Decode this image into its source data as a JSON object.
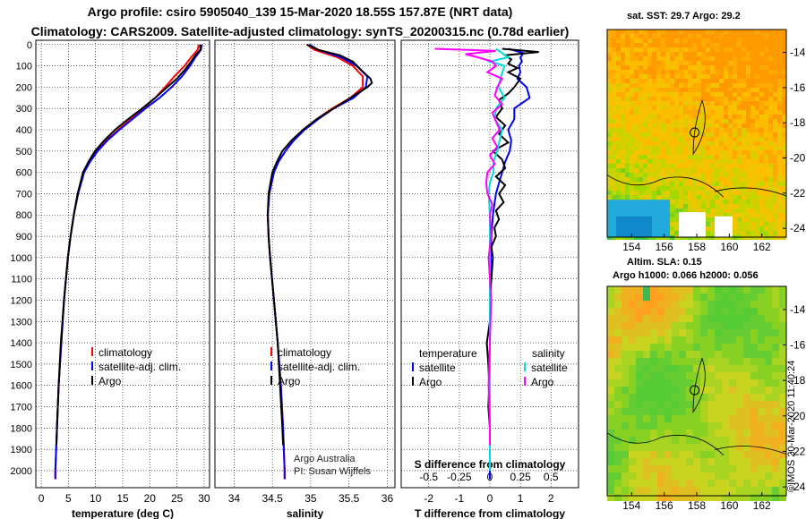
{
  "header": {
    "title_line1": "Argo profile: csiro 5905040_139 15-Mar-2020 18.55S 157.87E (NRT data)",
    "title_line2": "Climatology: CARS2009. Satellite-adjusted climatology: synTS_20200315.nc (0.78d earlier)"
  },
  "depth_axis": {
    "ticks": [
      "0",
      "100",
      "200",
      "300",
      "400",
      "500",
      "600",
      "700",
      "800",
      "900",
      "1000",
      "1100",
      "1200",
      "1300",
      "1400",
      "1500",
      "1600",
      "1700",
      "1800",
      "1900",
      "2000"
    ]
  },
  "colors": {
    "climatology": "#ff0000",
    "satellite": "#0000ff",
    "argo": "#000000",
    "sat_sal": "#00dddd",
    "argo_sal": "#ff00ff"
  },
  "chart_data": [
    {
      "type": "line",
      "xlabel": "temperature (deg C)",
      "ylabel": "depth",
      "xlim": [
        -1,
        31
      ],
      "ylim": [
        2080,
        -20
      ],
      "xticks": [
        "0",
        "5",
        "10",
        "15",
        "20",
        "25",
        "30"
      ],
      "legend": [
        "climatology",
        "satellite-adj. clim.",
        "Argo"
      ],
      "series": [
        {
          "name": "climatology",
          "depth": [
            0,
            25,
            60,
            100,
            150,
            200,
            250,
            300,
            350,
            400,
            450,
            500,
            550,
            600,
            700,
            800,
            900,
            1000,
            1200,
            1400,
            1600,
            1800,
            2000,
            2040
          ],
          "values": [
            29.0,
            28.8,
            27.6,
            26.4,
            24.5,
            22.8,
            21.0,
            18.8,
            16.5,
            14.2,
            12.0,
            10.2,
            8.9,
            7.8,
            6.7,
            6.0,
            5.4,
            4.9,
            4.2,
            3.7,
            3.2,
            2.9,
            2.6,
            2.6
          ]
        },
        {
          "name": "satellite-adj. clim.",
          "depth": [
            0,
            25,
            60,
            100,
            150,
            200,
            250,
            300,
            350,
            400,
            450,
            500,
            550,
            600,
            700,
            800,
            900,
            1000,
            1200,
            1400,
            1600,
            1800,
            2000,
            2040
          ],
          "values": [
            29.6,
            29.4,
            28.4,
            27.4,
            25.9,
            24.0,
            21.8,
            19.2,
            16.8,
            14.4,
            12.2,
            10.4,
            9.0,
            7.9,
            6.8,
            6.0,
            5.4,
            4.9,
            4.2,
            3.7,
            3.2,
            2.9,
            2.6,
            2.6
          ]
        },
        {
          "name": "Argo",
          "depth": [
            0,
            25,
            50,
            80,
            120,
            160,
            200,
            250,
            300,
            350,
            400,
            450,
            500,
            550,
            600,
            700,
            800,
            900,
            1000,
            1200,
            1400,
            1600,
            1800,
            1880
          ],
          "values": [
            29.3,
            29.3,
            28.4,
            27.6,
            26.4,
            25.0,
            23.2,
            21.0,
            18.6,
            16.0,
            13.6,
            11.6,
            9.9,
            8.7,
            7.7,
            6.7,
            6.0,
            5.4,
            4.9,
            4.2,
            3.6,
            3.2,
            2.9,
            2.8
          ]
        }
      ]
    },
    {
      "type": "line",
      "xlabel": "salinity",
      "ylabel": "depth",
      "xlim": [
        33.75,
        36.1
      ],
      "ylim": [
        2080,
        -20
      ],
      "xticks": [
        "34",
        "34.5",
        "35",
        "35.5",
        "36"
      ],
      "legend": [
        "climatology",
        "satellite-adj. clim.",
        "Argo"
      ],
      "annotation": [
        "Argo Australia",
        "PI: Susan Wijffels"
      ],
      "series": [
        {
          "name": "climatology",
          "depth": [
            0,
            25,
            60,
            100,
            150,
            200,
            250,
            300,
            350,
            400,
            450,
            500,
            550,
            600,
            700,
            800,
            900,
            1000,
            1200,
            1400,
            1600,
            1800,
            2000,
            2040
          ],
          "values": [
            34.95,
            35.05,
            35.35,
            35.55,
            35.68,
            35.68,
            35.52,
            35.28,
            35.08,
            34.9,
            34.77,
            34.67,
            34.58,
            34.52,
            34.46,
            34.44,
            34.45,
            34.47,
            34.52,
            34.57,
            34.61,
            34.64,
            34.66,
            34.66
          ]
        },
        {
          "name": "satellite-adj. clim.",
          "depth": [
            0,
            25,
            60,
            100,
            150,
            200,
            250,
            300,
            350,
            400,
            450,
            500,
            550,
            600,
            700,
            800,
            900,
            1000,
            1200,
            1400,
            1600,
            1800,
            2000,
            2040
          ],
          "values": [
            34.98,
            35.1,
            35.4,
            35.6,
            35.74,
            35.72,
            35.56,
            35.3,
            35.1,
            34.92,
            34.78,
            34.67,
            34.58,
            34.52,
            34.46,
            34.44,
            34.45,
            34.47,
            34.52,
            34.57,
            34.61,
            34.64,
            34.66,
            34.66
          ]
        },
        {
          "name": "Argo",
          "depth": [
            0,
            25,
            50,
            80,
            120,
            160,
            180,
            200,
            250,
            300,
            350,
            400,
            450,
            500,
            550,
            600,
            700,
            800,
            900,
            1000,
            1200,
            1400,
            1600,
            1800,
            1880
          ],
          "values": [
            34.95,
            35.1,
            35.38,
            35.55,
            35.66,
            35.78,
            35.8,
            35.74,
            35.52,
            35.3,
            35.08,
            34.9,
            34.75,
            34.63,
            34.56,
            34.5,
            34.45,
            34.44,
            34.45,
            34.47,
            34.52,
            34.57,
            34.6,
            34.63,
            34.64
          ]
        }
      ]
    },
    {
      "type": "line",
      "xlabel": "T difference from climatology",
      "xlabel2": "S difference from climatology",
      "ylabel": "depth",
      "xlim": [
        -2.9,
        2.9
      ],
      "ylim": [
        2080,
        -20
      ],
      "xticks_T": [
        "-2",
        "-1",
        "0",
        "1",
        "2"
      ],
      "xticks_S": [
        "-0.5",
        "-0.25",
        "0",
        "0.25",
        "0.5"
      ],
      "legend_T_header": "temperature",
      "legend_S_header": "salinity",
      "legend_T": [
        "satellite",
        "Argo"
      ],
      "legend_S": [
        "satellite",
        "Argo"
      ],
      "series": [
        {
          "name": "temperature satellite",
          "depth": [
            20,
            40,
            60,
            80,
            100,
            130,
            160,
            200,
            250,
            300,
            350,
            400,
            450,
            500,
            550,
            600,
            650,
            700,
            800,
            900,
            1000,
            1200,
            1400,
            1600,
            1800,
            2000,
            2040
          ],
          "values": [
            0.6,
            1.1,
            1.0,
            1.05,
            0.95,
            1.0,
            0.9,
            1.2,
            1.3,
            0.8,
            0.8,
            0.6,
            0.7,
            0.65,
            0.5,
            0.4,
            0.3,
            0.2,
            0.1,
            0.05,
            0.03,
            0.0,
            0.0,
            0.0,
            0.0,
            0.0,
            0.0
          ]
        },
        {
          "name": "temperature Argo",
          "depth": [
            20,
            35,
            50,
            70,
            90,
            110,
            130,
            160,
            200,
            230,
            260,
            300,
            340,
            380,
            420,
            460,
            500,
            540,
            580,
            620,
            660,
            700,
            740,
            780,
            820,
            860,
            900,
            950,
            1000,
            1100,
            1200,
            1300,
            1400,
            1500,
            1600,
            1700,
            1800,
            1880
          ],
          "values": [
            0.4,
            1.6,
            0.5,
            0.7,
            0.6,
            0.9,
            0.6,
            1.0,
            0.8,
            0.6,
            0.3,
            0.4,
            0.2,
            0.5,
            0.3,
            0.6,
            0.1,
            0.4,
            0.5,
            0.2,
            0.5,
            0.3,
            0.45,
            0.2,
            0.3,
            0.15,
            0.2,
            0.05,
            0.1,
            0.05,
            0.0,
            0.0,
            -0.1,
            -0.05,
            -0.02,
            -0.05,
            0.0,
            0.0
          ]
        },
        {
          "name": "salinity satellite",
          "depth": [
            20,
            40,
            60,
            80,
            100,
            150,
            200,
            250,
            300,
            350,
            400,
            450,
            500,
            550,
            600,
            650,
            700,
            800,
            900,
            1000,
            1200,
            1400,
            1600,
            1800,
            2000
          ],
          "values": [
            0.05,
            0.1,
            0.15,
            0.0,
            0.12,
            0.09,
            0.07,
            0.12,
            0.05,
            0.04,
            0.1,
            0.08,
            0.06,
            0.03,
            0.03,
            0.0,
            -0.01,
            0.0,
            0.0,
            0.0,
            0.0,
            0.0,
            0.0,
            0.0,
            0.0
          ]
        },
        {
          "name": "salinity Argo",
          "depth": [
            20,
            30,
            45,
            60,
            80,
            100,
            130,
            160,
            200,
            240,
            280,
            320,
            360,
            400,
            440,
            480,
            520,
            560,
            600,
            650,
            700,
            750,
            800,
            900,
            1000,
            1100,
            1200,
            1400,
            1600,
            1800,
            1880
          ],
          "values": [
            -0.45,
            0.05,
            -0.2,
            -0.1,
            0.02,
            0.05,
            -0.02,
            0.1,
            0.06,
            0.04,
            0.1,
            0.02,
            0.05,
            0.08,
            0.02,
            0.06,
            0.0,
            0.04,
            -0.02,
            -0.03,
            -0.02,
            0.02,
            0.0,
            0.01,
            -0.01,
            0.0,
            0.01,
            0.0,
            -0.01,
            0.0,
            0.0
          ]
        }
      ]
    }
  ],
  "map_sst": {
    "title": "sat. SST: 29.7 Argo: 29.2",
    "xticks": [
      "154",
      "156",
      "158",
      "160",
      "162"
    ],
    "yticks": [
      "-14",
      "-16",
      "-18",
      "-20",
      "-22",
      "-24"
    ]
  },
  "map_sla": {
    "title1": "Altim. SLA: 0.15",
    "title2": "Argo h1000: 0.066 h2000: 0.056",
    "xticks": [
      "154",
      "156",
      "158",
      "160",
      "162"
    ],
    "yticks": [
      "-14",
      "-16",
      "-18",
      "-20",
      "-22",
      "-24"
    ]
  },
  "credit": "©IMOS 20-Mar-2020 11:40:24"
}
